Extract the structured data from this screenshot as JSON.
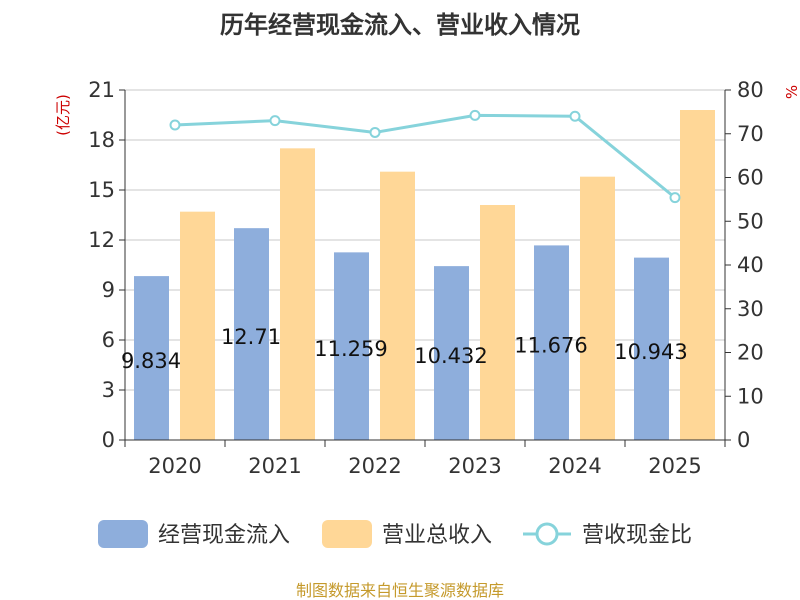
{
  "chart_data": {
    "type": "bar",
    "title": "历年经营现金流入、营业收入情况",
    "categories": [
      "2020",
      "2021",
      "2022",
      "2023",
      "2024",
      "2025"
    ],
    "series": [
      {
        "name": "经营现金流入",
        "type": "bar",
        "axis": "left",
        "color": "#8eaedc",
        "values": [
          9.834,
          12.71,
          11.259,
          10.432,
          11.676,
          10.943
        ]
      },
      {
        "name": "营业总收入",
        "type": "bar",
        "axis": "left",
        "color": "#ffd797",
        "values": [
          13.7,
          17.5,
          16.1,
          14.1,
          15.8,
          19.8
        ]
      },
      {
        "name": "营收现金比",
        "type": "line",
        "axis": "right",
        "color": "#86d3db",
        "values": [
          72.0,
          73.0,
          70.3,
          74.2,
          74.0,
          55.4
        ]
      }
    ],
    "data_labels": [
      "9.834",
      "12.71",
      "11.259",
      "10.432",
      "11.676",
      "10.943"
    ],
    "left_axis": {
      "unit": "(亿元)",
      "ylim": [
        0,
        21
      ],
      "ticks": [
        "0",
        "3",
        "6",
        "9",
        "12",
        "15",
        "18",
        "21"
      ]
    },
    "right_axis": {
      "unit": "%",
      "ylim": [
        0,
        80
      ],
      "ticks": [
        "0",
        "10",
        "20",
        "30",
        "40",
        "50",
        "60",
        "70",
        "80"
      ]
    },
    "grid": true,
    "legend_position": "bottom"
  },
  "source_text": "制图数据来自恒生聚源数据库"
}
